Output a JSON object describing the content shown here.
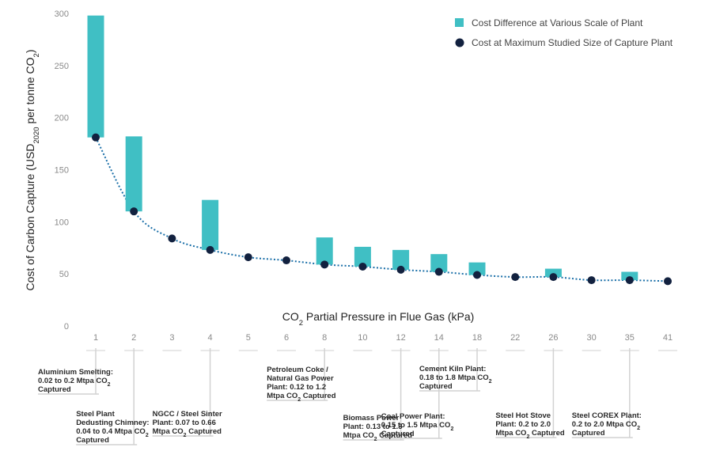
{
  "chart_data": {
    "type": "bar",
    "categories": [
      "1",
      "2",
      "3",
      "4",
      "5",
      "6",
      "8",
      "10",
      "12",
      "14",
      "18",
      "22",
      "26",
      "30",
      "35",
      "41"
    ],
    "series": [
      {
        "name": "Cost Difference at Various Scale of Plant",
        "kind": "floating-bar",
        "color": "#40bfc4",
        "ranges": [
          [
            181,
            298
          ],
          [
            110,
            182
          ],
          null,
          [
            73,
            121
          ],
          null,
          null,
          [
            59,
            85
          ],
          [
            57,
            76
          ],
          [
            54,
            73
          ],
          [
            52,
            69
          ],
          [
            49,
            61
          ],
          null,
          [
            47,
            55
          ],
          null,
          [
            44,
            52
          ],
          null
        ]
      },
      {
        "name": "Cost at Maximum Studied Size of Capture Plant",
        "kind": "point",
        "color": "#12213f",
        "values": [
          181,
          110,
          84,
          73,
          66,
          63,
          59,
          57,
          54,
          52,
          49,
          47,
          47,
          44,
          44,
          43
        ]
      }
    ],
    "trend_color": "#1a6fa8",
    "xlabel_parts": [
      "CO",
      "2",
      " Partial Pressure in Flue Gas (kPa)"
    ],
    "ylabel_parts": [
      "Cost of Carbon Capture (USD",
      "2020",
      " per tonne CO",
      "2",
      ")"
    ],
    "yticks": [
      0,
      50,
      100,
      150,
      200,
      250,
      300
    ],
    "ylim": [
      0,
      300
    ],
    "grid": false,
    "legend_position": "top-right",
    "annotations": [
      {
        "category": "1",
        "lines": [
          [
            [
              "Aluminium Smelting:",
              ""
            ]
          ],
          [
            [
              "0.02 to 0.2 Mtpa CO",
              ""
            ],
            [
              "2",
              "sub"
            ]
          ],
          [
            [
              "Captured",
              ""
            ]
          ]
        ]
      },
      {
        "category": "2",
        "lines": [
          [
            [
              "Steel Plant",
              ""
            ]
          ],
          [
            [
              "Dedusting Chimney:",
              ""
            ]
          ],
          [
            [
              "0.04 to 0.4 Mtpa CO",
              ""
            ],
            [
              "2",
              "sub"
            ]
          ],
          [
            [
              "Captured",
              ""
            ]
          ]
        ]
      },
      {
        "category": "4",
        "lines": [
          [
            [
              "NGCC / Steel Sinter",
              ""
            ]
          ],
          [
            [
              "Plant: 0.07 to 0.66",
              ""
            ]
          ],
          [
            [
              "Mtpa CO",
              ""
            ],
            [
              "2",
              "sub"
            ],
            [
              " Captured",
              ""
            ]
          ]
        ]
      },
      {
        "category": "8",
        "lines": [
          [
            [
              "Petroleum Coke /",
              ""
            ]
          ],
          [
            [
              "Natural Gas Power",
              ""
            ]
          ],
          [
            [
              "Plant: 0.12 to 1.2",
              ""
            ]
          ],
          [
            [
              "Mtpa CO",
              ""
            ],
            [
              "2",
              "sub"
            ],
            [
              " Captured",
              ""
            ]
          ]
        ]
      },
      {
        "category": "12",
        "lines": [
          [
            [
              "Biomass Power",
              ""
            ]
          ],
          [
            [
              "Plant: 0.13 to 1.3",
              ""
            ]
          ],
          [
            [
              "Mtpa CO",
              ""
            ],
            [
              "2",
              "sub"
            ],
            [
              " Captured",
              ""
            ]
          ]
        ]
      },
      {
        "category": "14",
        "lines": [
          [
            [
              "Coal Power Plant:",
              ""
            ]
          ],
          [
            [
              "0.15 to 1.5 Mtpa CO",
              ""
            ],
            [
              "2",
              "sub"
            ]
          ],
          [
            [
              "Captured",
              ""
            ]
          ]
        ]
      },
      {
        "category": "18",
        "lines": [
          [
            [
              "Cement Kiln Plant:",
              ""
            ]
          ],
          [
            [
              "0.18 to 1.8 Mtpa CO",
              ""
            ],
            [
              "2",
              "sub"
            ]
          ],
          [
            [
              "Captured",
              ""
            ]
          ]
        ]
      },
      {
        "category": "26",
        "lines": [
          [
            [
              "Steel Hot Stove",
              ""
            ]
          ],
          [
            [
              "Plant: 0.2 to 2.0",
              ""
            ]
          ],
          [
            [
              "Mtpa CO",
              ""
            ],
            [
              "2",
              "sub"
            ],
            [
              " Captured",
              ""
            ]
          ]
        ]
      },
      {
        "category": "35",
        "lines": [
          [
            [
              "Steel COREX Plant:",
              ""
            ]
          ],
          [
            [
              "0.2 to 2.0 Mtpa CO",
              ""
            ],
            [
              "2",
              "sub"
            ]
          ],
          [
            [
              "Captured",
              ""
            ]
          ]
        ]
      }
    ]
  }
}
